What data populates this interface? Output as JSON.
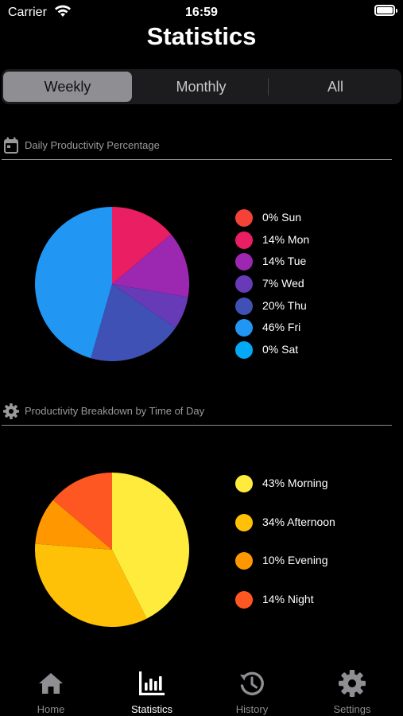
{
  "status_bar": {
    "carrier": "Carrier",
    "time": "16:59"
  },
  "title": "Statistics",
  "segments": [
    {
      "label": "Weekly",
      "selected": true
    },
    {
      "label": "Monthly",
      "selected": false
    },
    {
      "label": "All",
      "selected": false
    }
  ],
  "sections": [
    {
      "title": "Daily Productivity Percentage",
      "icon": "calendar-icon"
    },
    {
      "title": "Productivity Breakdown by Time of Day",
      "icon": "gear-icon"
    }
  ],
  "chart_data": [
    {
      "type": "pie",
      "categories": [
        "Sun",
        "Mon",
        "Tue",
        "Wed",
        "Thu",
        "Fri",
        "Sat"
      ],
      "values": [
        0,
        14,
        14,
        7,
        20,
        46,
        0
      ],
      "labels": [
        "0% Sun",
        "14% Mon",
        "14% Tue",
        "7% Wed",
        "20% Thu",
        "46% Fri",
        "0% Sat"
      ],
      "colors": [
        "#f44336",
        "#e91e63",
        "#9c27b0",
        "#673ab7",
        "#3f51b5",
        "#2196f3",
        "#03a9f4"
      ],
      "legend": "right"
    },
    {
      "type": "pie",
      "categories": [
        "Morning",
        "Afternoon",
        "Evening",
        "Night"
      ],
      "values": [
        43,
        34,
        10,
        14
      ],
      "labels": [
        "43% Morning",
        "34% Afternoon",
        "10% Evening",
        "14% Night"
      ],
      "colors": [
        "#ffeb3b",
        "#ffc107",
        "#ff9800",
        "#ff5722"
      ],
      "legend": "right"
    }
  ],
  "tabs": [
    {
      "label": "Home",
      "icon": "home-icon",
      "selected": false
    },
    {
      "label": "Statistics",
      "icon": "bar-chart-icon",
      "selected": true
    },
    {
      "label": "History",
      "icon": "history-icon",
      "selected": false
    },
    {
      "label": "Settings",
      "icon": "gear-icon",
      "selected": false
    }
  ]
}
